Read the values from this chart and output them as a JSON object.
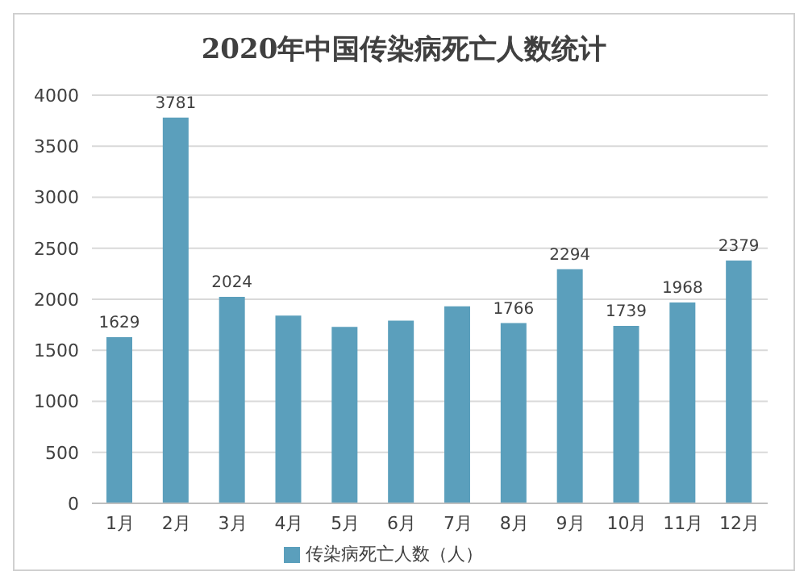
{
  "chart_data": {
    "type": "bar",
    "title": "2020年中国传染病死亡人数统计",
    "categories": [
      "1月",
      "2月",
      "3月",
      "4月",
      "5月",
      "6月",
      "7月",
      "8月",
      "9月",
      "10月",
      "11月",
      "12月"
    ],
    "series": [
      {
        "name": "传染病死亡人数（人）",
        "color": "#5b9fbc",
        "values": [
          1629,
          3781,
          2024,
          1840,
          1730,
          1790,
          1930,
          1766,
          2294,
          1739,
          1968,
          2379
        ],
        "value_labels": [
          "1629",
          "3781",
          "2024",
          null,
          null,
          null,
          null,
          "1766",
          "2294",
          "1739",
          "1968",
          "2379"
        ]
      }
    ],
    "ylim": [
      0,
      4000
    ],
    "yticks": [
      0,
      500,
      1000,
      1500,
      2000,
      2500,
      3000,
      3500,
      4000
    ],
    "grid": "y",
    "legend": "bottom"
  }
}
